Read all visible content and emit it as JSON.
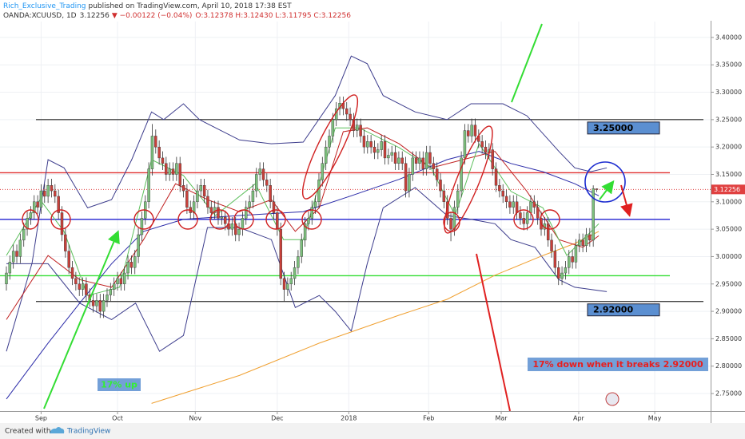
{
  "header": {
    "author": "Rich_Exclusive_Trading",
    "published": "published on TradingView.com, April 10, 2018 17:38 EST",
    "symbol": "OANDA:XCUUSD, 1D",
    "change": "▼ −0.00122 (−0.04%)",
    "ohlc_text": "O:3.12378 H:3.12430 L:3.11795 C:3.12256"
  },
  "footer": {
    "created_with": "Created with",
    "brand": "TradingView"
  },
  "chart_data": {
    "type": "candlestick",
    "grid": true,
    "colors": {
      "up": "#7cbf7c",
      "down": "#c8403a",
      "wick": "#333333"
    },
    "ylim": [
      2.718,
      3.429
    ],
    "xlim": [
      -1.84,
      202.8
    ],
    "yticks": [
      {
        "value": 2.75,
        "label": "2.75000"
      },
      {
        "value": 2.8,
        "label": "2.80000"
      },
      {
        "value": 2.85,
        "label": "2.85000"
      },
      {
        "value": 2.9,
        "label": "2.90000"
      },
      {
        "value": 2.95,
        "label": "2.95000"
      },
      {
        "value": 3.0,
        "label": "3.00000"
      },
      {
        "value": 3.05,
        "label": "3.05000"
      },
      {
        "value": 3.1,
        "label": "3.10000"
      },
      {
        "value": 3.15,
        "label": "3.15000"
      },
      {
        "value": 3.2,
        "label": "3.20000"
      },
      {
        "value": 3.25,
        "label": "3.25000"
      },
      {
        "value": 3.3,
        "label": "3.30000"
      },
      {
        "value": 3.35,
        "label": "3.35000"
      },
      {
        "value": 3.4,
        "label": "3.40000"
      }
    ],
    "xticks": [
      {
        "value": 10,
        "label": "Sep"
      },
      {
        "value": 32,
        "label": "Oct"
      },
      {
        "value": 54.4,
        "label": "Nov"
      },
      {
        "value": 78,
        "label": "Dec"
      },
      {
        "value": 98.6,
        "label": "2018"
      },
      {
        "value": 121.6,
        "label": "Feb"
      },
      {
        "value": 142.5,
        "label": "Mar"
      },
      {
        "value": 164.8,
        "label": "Apr"
      },
      {
        "value": 186.7,
        "label": "May"
      }
    ],
    "ohlc": [
      [
        2.95,
        2.982,
        2.938,
        2.97
      ],
      [
        2.97,
        3.002,
        2.958,
        2.99
      ],
      [
        2.99,
        3.022,
        2.978,
        3.01
      ],
      [
        3.01,
        3.022,
        2.988,
        3.0
      ],
      [
        3.0,
        3.042,
        2.988,
        3.03
      ],
      [
        3.03,
        3.062,
        3.018,
        3.05
      ],
      [
        3.05,
        3.082,
        3.038,
        3.07
      ],
      [
        3.07,
        3.092,
        3.058,
        3.08
      ],
      [
        3.08,
        3.112,
        3.068,
        3.1
      ],
      [
        3.1,
        3.112,
        3.078,
        3.09
      ],
      [
        3.09,
        3.132,
        3.078,
        3.12
      ],
      [
        3.12,
        3.132,
        3.098,
        3.11
      ],
      [
        3.11,
        3.142,
        3.098,
        3.13
      ],
      [
        3.13,
        3.142,
        3.108,
        3.12
      ],
      [
        3.12,
        3.132,
        3.098,
        3.11
      ],
      [
        3.11,
        3.122,
        3.068,
        3.08
      ],
      [
        3.08,
        3.092,
        3.028,
        3.04
      ],
      [
        3.04,
        3.052,
        2.998,
        3.01
      ],
      [
        3.01,
        3.022,
        2.968,
        2.98
      ],
      [
        2.98,
        2.992,
        2.948,
        2.96
      ],
      [
        2.96,
        2.972,
        2.938,
        2.95
      ],
      [
        2.95,
        2.962,
        2.928,
        2.94
      ],
      [
        2.94,
        2.962,
        2.928,
        2.95
      ],
      [
        2.95,
        2.962,
        2.918,
        2.93
      ],
      [
        2.93,
        2.942,
        2.908,
        2.92
      ],
      [
        2.92,
        2.932,
        2.898,
        2.91
      ],
      [
        2.91,
        2.932,
        2.898,
        2.92
      ],
      [
        2.92,
        2.932,
        2.888,
        2.9
      ],
      [
        2.9,
        2.932,
        2.888,
        2.92
      ],
      [
        2.92,
        2.942,
        2.908,
        2.93
      ],
      [
        2.93,
        2.952,
        2.918,
        2.94
      ],
      [
        2.94,
        2.962,
        2.928,
        2.95
      ],
      [
        2.95,
        2.972,
        2.938,
        2.96
      ],
      [
        2.96,
        2.972,
        2.938,
        2.95
      ],
      [
        2.95,
        2.982,
        2.938,
        2.97
      ],
      [
        2.97,
        3.002,
        2.958,
        2.99
      ],
      [
        2.99,
        3.002,
        2.968,
        2.98
      ],
      [
        2.98,
        3.012,
        2.968,
        3.0
      ],
      [
        3.0,
        3.052,
        2.988,
        3.04
      ],
      [
        3.04,
        3.082,
        3.028,
        3.07
      ],
      [
        3.07,
        3.112,
        3.058,
        3.1
      ],
      [
        3.1,
        3.172,
        3.088,
        3.16
      ],
      [
        3.16,
        3.242,
        3.148,
        3.22
      ],
      [
        3.22,
        3.232,
        3.188,
        3.2
      ],
      [
        3.2,
        3.212,
        3.168,
        3.18
      ],
      [
        3.18,
        3.192,
        3.158,
        3.17
      ],
      [
        3.17,
        3.182,
        3.138,
        3.15
      ],
      [
        3.15,
        3.172,
        3.138,
        3.16
      ],
      [
        3.16,
        3.172,
        3.138,
        3.15
      ],
      [
        3.15,
        3.182,
        3.138,
        3.17
      ],
      [
        3.17,
        3.182,
        3.118,
        3.13
      ],
      [
        3.13,
        3.142,
        3.108,
        3.12
      ],
      [
        3.12,
        3.132,
        3.078,
        3.09
      ],
      [
        3.09,
        3.102,
        3.068,
        3.08
      ],
      [
        3.08,
        3.112,
        3.068,
        3.1
      ],
      [
        3.1,
        3.132,
        3.088,
        3.12
      ],
      [
        3.12,
        3.142,
        3.108,
        3.13
      ],
      [
        3.13,
        3.142,
        3.098,
        3.11
      ],
      [
        3.11,
        3.122,
        3.078,
        3.09
      ],
      [
        3.09,
        3.102,
        3.068,
        3.08
      ],
      [
        3.08,
        3.102,
        3.068,
        3.09
      ],
      [
        3.09,
        3.102,
        3.058,
        3.07
      ],
      [
        3.07,
        3.084,
        3.058,
        3.072
      ],
      [
        3.072,
        3.084,
        3.048,
        3.06
      ],
      [
        3.06,
        3.072,
        3.038,
        3.05
      ],
      [
        3.05,
        3.072,
        3.038,
        3.06
      ],
      [
        3.06,
        3.072,
        3.028,
        3.04
      ],
      [
        3.04,
        3.062,
        3.028,
        3.05
      ],
      [
        3.05,
        3.082,
        3.038,
        3.07
      ],
      [
        3.07,
        3.102,
        3.058,
        3.09
      ],
      [
        3.09,
        3.112,
        3.078,
        3.1
      ],
      [
        3.1,
        3.132,
        3.088,
        3.12
      ],
      [
        3.12,
        3.162,
        3.108,
        3.15
      ],
      [
        3.15,
        3.172,
        3.138,
        3.16
      ],
      [
        3.16,
        3.172,
        3.128,
        3.14
      ],
      [
        3.14,
        3.152,
        3.118,
        3.13
      ],
      [
        3.13,
        3.142,
        3.088,
        3.1
      ],
      [
        3.1,
        3.112,
        3.068,
        3.08
      ],
      [
        3.08,
        3.092,
        3.038,
        3.05
      ],
      [
        3.05,
        3.062,
        2.948,
        2.96
      ],
      [
        2.96,
        2.972,
        2.918,
        2.94
      ],
      [
        2.94,
        2.962,
        2.928,
        2.95
      ],
      [
        2.95,
        2.972,
        2.938,
        2.96
      ],
      [
        2.96,
        2.992,
        2.948,
        2.98
      ],
      [
        2.98,
        3.012,
        2.968,
        3.0
      ],
      [
        3.0,
        3.042,
        2.988,
        3.03
      ],
      [
        3.03,
        3.072,
        3.018,
        3.06
      ],
      [
        3.06,
        3.082,
        3.048,
        3.07
      ],
      [
        3.07,
        3.102,
        3.058,
        3.09
      ],
      [
        3.09,
        3.112,
        3.078,
        3.1
      ],
      [
        3.1,
        3.152,
        3.088,
        3.14
      ],
      [
        3.14,
        3.182,
        3.128,
        3.17
      ],
      [
        3.17,
        3.212,
        3.158,
        3.2
      ],
      [
        3.2,
        3.232,
        3.188,
        3.22
      ],
      [
        3.22,
        3.262,
        3.208,
        3.25
      ],
      [
        3.25,
        3.282,
        3.238,
        3.27
      ],
      [
        3.27,
        3.292,
        3.258,
        3.28
      ],
      [
        3.28,
        3.292,
        3.258,
        3.27
      ],
      [
        3.27,
        3.282,
        3.248,
        3.26
      ],
      [
        3.26,
        3.272,
        3.238,
        3.25
      ],
      [
        3.25,
        3.262,
        3.218,
        3.23
      ],
      [
        3.23,
        3.252,
        3.218,
        3.24
      ],
      [
        3.24,
        3.252,
        3.208,
        3.22
      ],
      [
        3.22,
        3.232,
        3.188,
        3.2
      ],
      [
        3.2,
        3.222,
        3.188,
        3.21
      ],
      [
        3.21,
        3.222,
        3.188,
        3.2
      ],
      [
        3.2,
        3.212,
        3.178,
        3.19
      ],
      [
        3.19,
        3.207,
        3.178,
        3.195
      ],
      [
        3.195,
        3.222,
        3.183,
        3.21
      ],
      [
        3.21,
        3.222,
        3.168,
        3.18
      ],
      [
        3.18,
        3.197,
        3.168,
        3.185
      ],
      [
        3.185,
        3.202,
        3.173,
        3.19
      ],
      [
        3.19,
        3.202,
        3.158,
        3.17
      ],
      [
        3.17,
        3.192,
        3.158,
        3.18
      ],
      [
        3.18,
        3.192,
        3.158,
        3.17
      ],
      [
        3.17,
        3.182,
        3.108,
        3.12
      ],
      [
        3.12,
        3.162,
        3.108,
        3.15
      ],
      [
        3.15,
        3.192,
        3.138,
        3.18
      ],
      [
        3.18,
        3.192,
        3.158,
        3.17
      ],
      [
        3.17,
        3.192,
        3.158,
        3.18
      ],
      [
        3.18,
        3.192,
        3.148,
        3.16
      ],
      [
        3.16,
        3.202,
        3.148,
        3.19
      ],
      [
        3.19,
        3.202,
        3.158,
        3.17
      ],
      [
        3.17,
        3.182,
        3.148,
        3.16
      ],
      [
        3.16,
        3.172,
        3.128,
        3.14
      ],
      [
        3.14,
        3.152,
        3.108,
        3.12
      ],
      [
        3.12,
        3.132,
        3.088,
        3.1
      ],
      [
        3.1,
        3.112,
        3.058,
        3.07
      ],
      [
        3.07,
        3.082,
        3.028,
        3.05
      ],
      [
        3.05,
        3.102,
        3.038,
        3.09
      ],
      [
        3.09,
        3.132,
        3.078,
        3.12
      ],
      [
        3.12,
        3.192,
        3.108,
        3.18
      ],
      [
        3.18,
        3.242,
        3.168,
        3.23
      ],
      [
        3.23,
        3.242,
        3.208,
        3.22
      ],
      [
        3.22,
        3.252,
        3.208,
        3.24
      ],
      [
        3.24,
        3.252,
        3.208,
        3.22
      ],
      [
        3.22,
        3.232,
        3.198,
        3.21
      ],
      [
        3.21,
        3.222,
        3.188,
        3.2
      ],
      [
        3.2,
        3.212,
        3.178,
        3.19
      ],
      [
        3.19,
        3.207,
        3.178,
        3.195
      ],
      [
        3.195,
        3.207,
        3.148,
        3.16
      ],
      [
        3.16,
        3.172,
        3.118,
        3.13
      ],
      [
        3.13,
        3.142,
        3.108,
        3.12
      ],
      [
        3.12,
        3.132,
        3.098,
        3.11
      ],
      [
        3.11,
        3.122,
        3.088,
        3.1
      ],
      [
        3.1,
        3.112,
        3.078,
        3.09
      ],
      [
        3.09,
        3.112,
        3.078,
        3.1
      ],
      [
        3.1,
        3.112,
        3.068,
        3.08
      ],
      [
        3.08,
        3.092,
        3.058,
        3.07
      ],
      [
        3.07,
        3.082,
        3.048,
        3.06
      ],
      [
        3.06,
        3.092,
        3.048,
        3.08
      ],
      [
        3.08,
        3.112,
        3.068,
        3.1
      ],
      [
        3.1,
        3.112,
        3.078,
        3.09
      ],
      [
        3.09,
        3.102,
        3.058,
        3.07
      ],
      [
        3.07,
        3.082,
        3.038,
        3.05
      ],
      [
        3.05,
        3.072,
        3.038,
        3.06
      ],
      [
        3.06,
        3.072,
        3.018,
        3.03
      ],
      [
        3.03,
        3.042,
        2.998,
        3.01
      ],
      [
        3.01,
        3.022,
        2.968,
        2.98
      ],
      [
        2.98,
        2.992,
        2.948,
        2.96
      ],
      [
        2.96,
        2.982,
        2.948,
        2.97
      ],
      [
        2.97,
        2.992,
        2.958,
        2.98
      ],
      [
        2.98,
        3.012,
        2.968,
        3.0
      ],
      [
        3.0,
        3.012,
        2.978,
        2.99
      ],
      [
        2.99,
        3.032,
        2.978,
        3.02
      ],
      [
        3.02,
        3.042,
        3.008,
        3.03
      ],
      [
        3.03,
        3.042,
        3.008,
        3.02
      ],
      [
        3.02,
        3.052,
        3.008,
        3.04
      ],
      [
        3.04,
        3.052,
        3.018,
        3.03
      ],
      [
        3.03,
        3.13,
        3.018,
        3.124
      ],
      [
        3.12378,
        3.1243,
        3.11795,
        3.12256
      ]
    ],
    "overlays": [
      {
        "color": "#3c3c8c",
        "x": [
          0,
          7.4,
          12,
          16.6,
          23.4,
          30.3,
          36.1,
          41.8,
          45.3,
          51,
          55.6,
          67.1,
          76.3,
          85.5,
          94.7,
          99.3,
          103.9,
          108.5,
          117.7,
          126.9,
          133.8,
          143,
          149.9,
          159.1,
          163.7,
          168.3,
          172.9
        ],
        "values": [
          2.827,
          2.988,
          3.177,
          3.162,
          3.089,
          3.104,
          3.177,
          3.264,
          3.25,
          3.279,
          3.25,
          3.213,
          3.206,
          3.209,
          3.294,
          3.366,
          3.352,
          3.294,
          3.264,
          3.25,
          3.279,
          3.279,
          3.257,
          3.192,
          3.162,
          3.155,
          3.162
        ]
      },
      {
        "color": "#3c3c8c",
        "x": [
          0,
          12,
          21.1,
          30.3,
          37.2,
          44.1,
          51,
          57.9,
          67.1,
          76.3,
          83.2,
          90.1,
          94.7,
          99.3,
          103.9,
          108.5,
          117.7,
          126.9,
          133.8,
          140.7,
          145.3,
          152.2,
          159.1,
          163.7,
          172.9
        ],
        "values": [
          2.987,
          2.987,
          2.915,
          2.885,
          2.915,
          2.827,
          2.856,
          3.053,
          3.053,
          3.031,
          2.907,
          2.929,
          2.9,
          2.864,
          2.987,
          3.089,
          3.126,
          3.075,
          3.068,
          3.06,
          3.031,
          3.017,
          2.958,
          2.944,
          2.936
        ]
      },
      {
        "color": "#2a2aa8",
        "x": [
          0,
          12,
          21.1,
          30.3,
          39.5,
          51,
          67.1,
          85.5,
          99.3,
          113.1,
          126.9,
          136.1,
          145.3,
          154.5,
          163.7,
          170.6
        ],
        "values": [
          2.74,
          2.842,
          2.915,
          2.987,
          3.046,
          3.068,
          3.075,
          3.082,
          3.111,
          3.141,
          3.177,
          3.192,
          3.17,
          3.155,
          3.133,
          3.111
        ]
      },
      {
        "color": "#f0a030",
        "x": [
          41.8,
          67.1,
          90.1,
          113.1,
          126.9,
          140.7,
          154.5,
          163.7,
          170.6
        ],
        "values": [
          2.732,
          2.783,
          2.842,
          2.893,
          2.922,
          2.966,
          3.002,
          3.024,
          3.046
        ]
      },
      {
        "color": "#c02020",
        "x": [
          0,
          12,
          21.1,
          30.3,
          39.5,
          48.7,
          57.9,
          67.1,
          76.3,
          83.2,
          90.1,
          97,
          103.9,
          113.1,
          122.3,
          131.5,
          140.7,
          149.9,
          159.1,
          166,
          170.6
        ],
        "values": [
          2.885,
          3.002,
          2.958,
          2.944,
          3.031,
          3.133,
          3.104,
          3.082,
          3.104,
          3.046,
          3.089,
          3.228,
          3.235,
          3.206,
          3.162,
          3.177,
          3.192,
          3.119,
          3.031,
          3.017,
          3.038
        ]
      },
      {
        "color": "#5cbf5c",
        "x": [
          0,
          9.7,
          16.6,
          23.4,
          32.6,
          41.8,
          51,
          60.2,
          71.7,
          79.8,
          85.5,
          94.7,
          101.6,
          113.1,
          122.3,
          129.2,
          136.1,
          145.3,
          154.5,
          161.4,
          170.6
        ],
        "values": [
          3.002,
          3.104,
          3.046,
          2.929,
          2.944,
          3.177,
          3.148,
          3.075,
          3.133,
          3.031,
          3.031,
          3.235,
          3.235,
          3.199,
          3.162,
          3.075,
          3.206,
          3.119,
          3.089,
          3.002,
          3.06
        ]
      }
    ],
    "levels": [
      {
        "value": 3.25,
        "color": "#444444",
        "label": "3.25000"
      },
      {
        "value": 3.153,
        "color": "#e03030"
      },
      {
        "value": 3.068,
        "color": "#2020d0"
      },
      {
        "value": 2.965,
        "color": "#33dd33"
      },
      {
        "value": 2.918,
        "color": "#444444",
        "label": "2.92000"
      }
    ],
    "annotations": {
      "up": "17% up",
      "down": "17% down when it breaks 2.92000"
    }
  }
}
